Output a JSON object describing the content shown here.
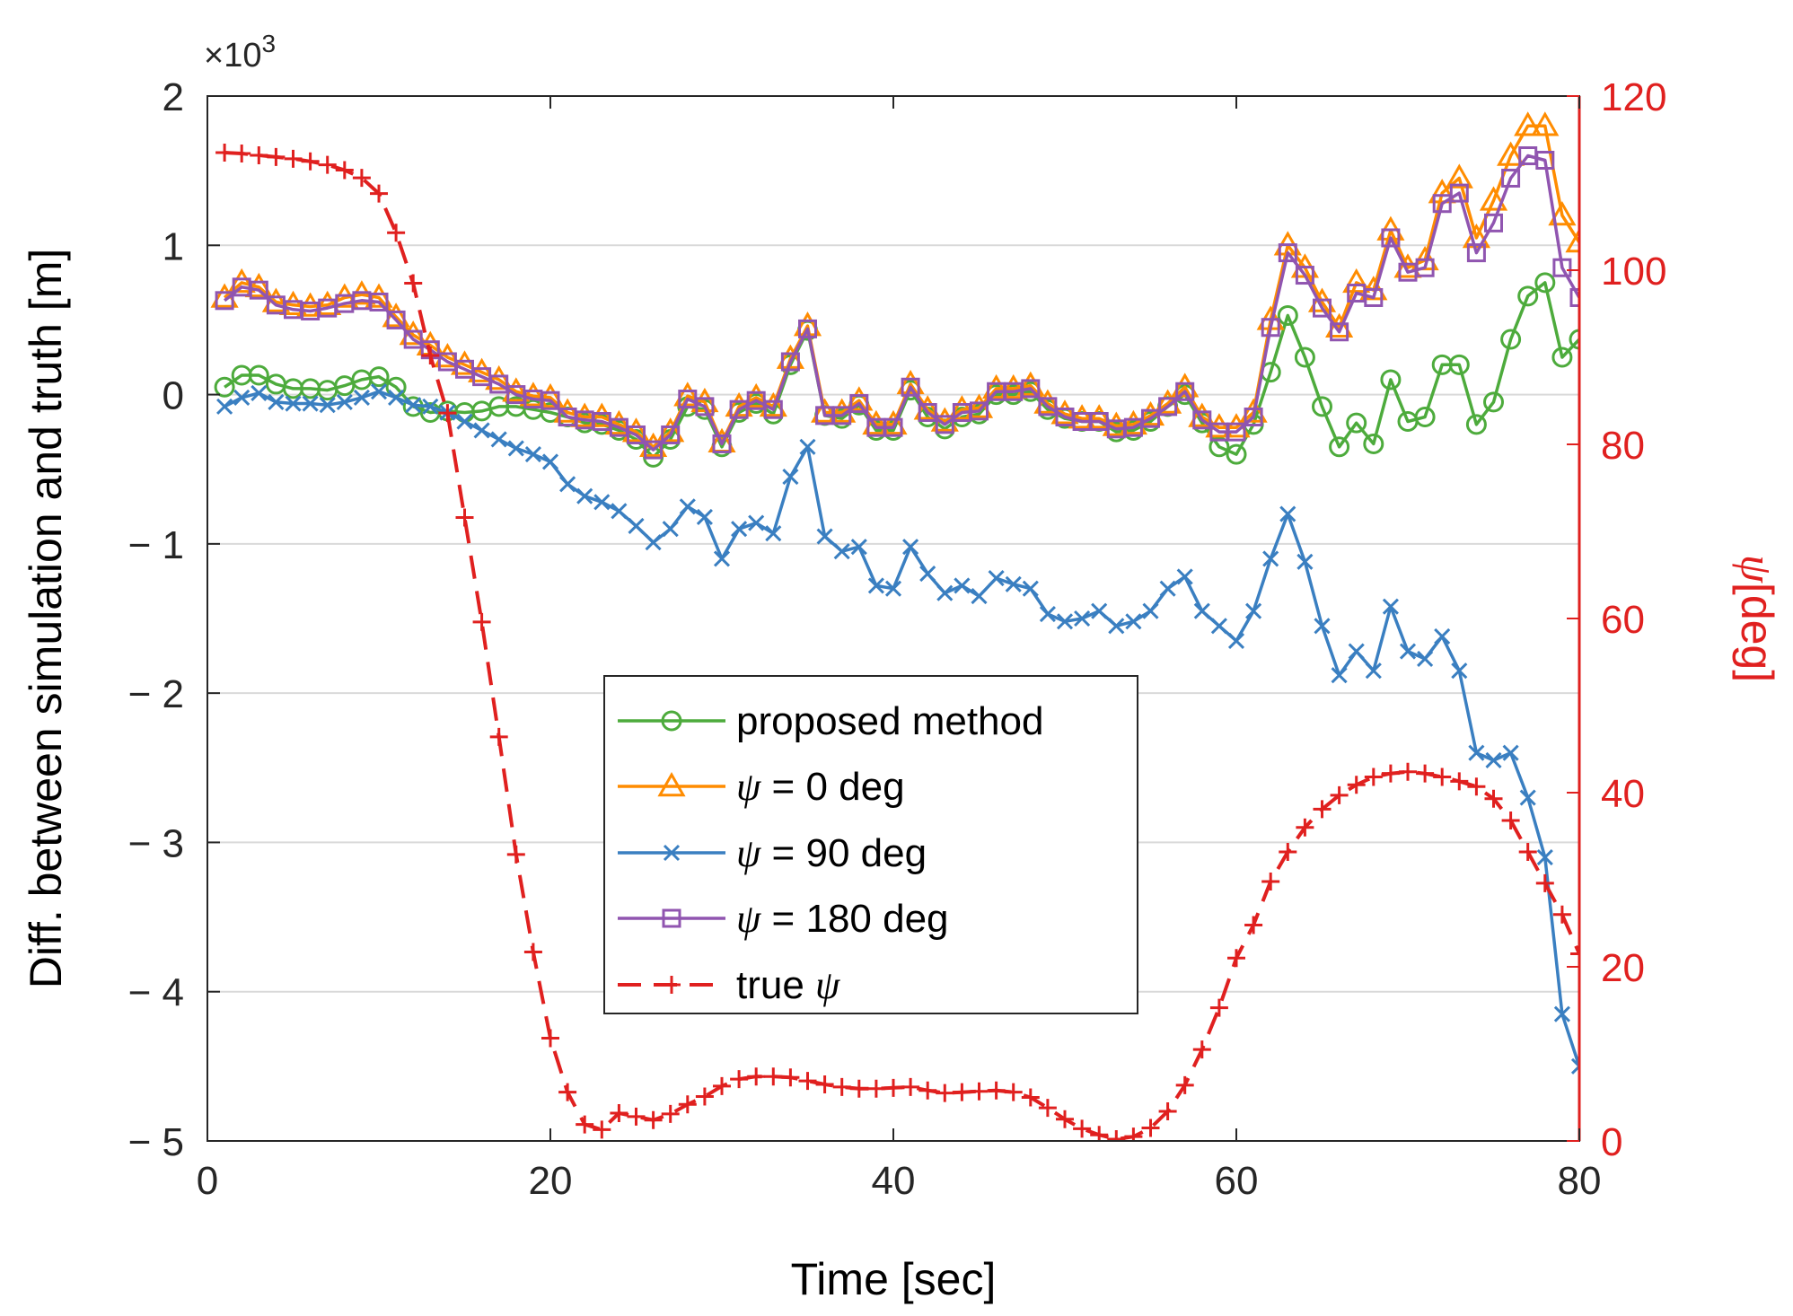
{
  "chart_data": {
    "type": "line",
    "title": "",
    "xlabel": "Time [sec]",
    "ylabel_left": "Diff. between simulation and truth [m]",
    "ylabel_right_symbol": "ψ",
    "ylabel_right_unit": "[deg]",
    "left_multiplier": "×10",
    "left_multiplier_exp": "3",
    "xlim": [
      0,
      80
    ],
    "ylim_left": [
      -5,
      2
    ],
    "ylim_right": [
      0,
      120
    ],
    "x_ticks": [
      "0",
      "20",
      "40",
      "60",
      "80"
    ],
    "y_ticks_left": [
      "2",
      "1",
      "0",
      "− 1",
      "− 2",
      "− 3",
      "− 4",
      "− 5"
    ],
    "y_ticks_right": [
      "120",
      "100",
      "80",
      "60",
      "40",
      "20",
      "0"
    ],
    "grid": "horizontal",
    "legend_position": "center",
    "colors": {
      "green": "#4dab3c",
      "orange": "#ff8c00",
      "blue": "#3a7fc1",
      "purple": "#9055b0",
      "red": "#e0201f",
      "axis": "#262626",
      "grid": "#d9d9d9"
    },
    "x": [
      1,
      2,
      3,
      4,
      5,
      6,
      7,
      8,
      9,
      10,
      11,
      12,
      13,
      14,
      15,
      16,
      17,
      18,
      19,
      20,
      21,
      22,
      23,
      24,
      25,
      26,
      27,
      28,
      29,
      30,
      31,
      32,
      33,
      34,
      35,
      36,
      37,
      38,
      39,
      40,
      41,
      42,
      43,
      44,
      45,
      46,
      47,
      48,
      49,
      50,
      51,
      52,
      53,
      54,
      55,
      56,
      57,
      58,
      59,
      60,
      61,
      62,
      63,
      64,
      65,
      66,
      67,
      68,
      69,
      70,
      71,
      72,
      73,
      74,
      75,
      76,
      77,
      78,
      79,
      80
    ],
    "series": [
      {
        "name": "proposed method",
        "axis": "left",
        "color": "#4dab3c",
        "marker": "circle",
        "dash": "solid",
        "values": [
          0.05,
          0.13,
          0.13,
          0.07,
          0.04,
          0.04,
          0.03,
          0.06,
          0.1,
          0.12,
          0.05,
          -0.08,
          -0.12,
          -0.11,
          -0.12,
          -0.11,
          -0.08,
          -0.08,
          -0.1,
          -0.12,
          -0.15,
          -0.19,
          -0.2,
          -0.24,
          -0.3,
          -0.42,
          -0.3,
          -0.08,
          -0.1,
          -0.35,
          -0.12,
          -0.06,
          -0.13,
          0.2,
          0.43,
          -0.14,
          -0.16,
          -0.07,
          -0.24,
          -0.24,
          0.03,
          -0.15,
          -0.23,
          -0.15,
          -0.13,
          0,
          0,
          0.02,
          -0.1,
          -0.16,
          -0.18,
          -0.18,
          -0.25,
          -0.24,
          -0.18,
          -0.08,
          0,
          -0.19,
          -0.35,
          -0.4,
          -0.2,
          0.15,
          0.53,
          0.25,
          -0.08,
          -0.35,
          -0.19,
          -0.33,
          0.1,
          -0.18,
          -0.15,
          0.2,
          0.2,
          -0.2,
          -0.05,
          0.37,
          0.66,
          0.75,
          0.25,
          0.37
        ]
      },
      {
        "name": "ψ = 0 deg",
        "axis": "left",
        "color": "#ff8c00",
        "marker": "triangle",
        "dash": "solid",
        "values": [
          0.65,
          0.75,
          0.72,
          0.62,
          0.6,
          0.59,
          0.6,
          0.65,
          0.67,
          0.65,
          0.52,
          0.4,
          0.33,
          0.25,
          0.2,
          0.15,
          0.1,
          0.02,
          -0.01,
          -0.02,
          -0.12,
          -0.15,
          -0.15,
          -0.2,
          -0.25,
          -0.35,
          -0.25,
          -0.01,
          -0.05,
          -0.32,
          -0.08,
          -0.02,
          -0.08,
          0.24,
          0.46,
          -0.12,
          -0.12,
          -0.04,
          -0.2,
          -0.2,
          0.07,
          -0.1,
          -0.18,
          -0.1,
          -0.09,
          0.04,
          0.04,
          0.06,
          -0.06,
          -0.13,
          -0.16,
          -0.16,
          -0.21,
          -0.2,
          -0.14,
          -0.06,
          0.05,
          -0.15,
          -0.22,
          -0.22,
          -0.12,
          0.5,
          1,
          0.85,
          0.62,
          0.45,
          0.75,
          0.7,
          1.1,
          0.85,
          0.9,
          1.35,
          1.45,
          1.05,
          1.3,
          1.6,
          1.8,
          1.8,
          1.2,
          1.02
        ]
      },
      {
        "name": "ψ = 90 deg",
        "axis": "left",
        "color": "#3a7fc1",
        "marker": "x",
        "dash": "solid",
        "values": [
          -0.08,
          -0.02,
          0.01,
          -0.05,
          -0.06,
          -0.06,
          -0.07,
          -0.05,
          -0.02,
          0.02,
          -0.02,
          -0.07,
          -0.08,
          -0.12,
          -0.18,
          -0.24,
          -0.3,
          -0.36,
          -0.4,
          -0.45,
          -0.6,
          -0.68,
          -0.72,
          -0.78,
          -0.88,
          -0.99,
          -0.9,
          -0.75,
          -0.82,
          -1.1,
          -0.9,
          -0.86,
          -0.93,
          -0.55,
          -0.35,
          -0.95,
          -1.05,
          -1.02,
          -1.28,
          -1.3,
          -1.02,
          -1.2,
          -1.33,
          -1.28,
          -1.35,
          -1.23,
          -1.27,
          -1.3,
          -1.47,
          -1.52,
          -1.5,
          -1.45,
          -1.55,
          -1.52,
          -1.45,
          -1.3,
          -1.22,
          -1.45,
          -1.55,
          -1.65,
          -1.45,
          -1.1,
          -0.8,
          -1.12,
          -1.55,
          -1.88,
          -1.72,
          -1.85,
          -1.42,
          -1.72,
          -1.77,
          -1.62,
          -1.85,
          -2.4,
          -2.45,
          -2.4,
          -2.7,
          -3.1,
          -4.15,
          -4.5
        ]
      },
      {
        "name": "ψ = 180 deg",
        "axis": "left",
        "color": "#9055b0",
        "marker": "square",
        "dash": "solid",
        "values": [
          0.63,
          0.72,
          0.7,
          0.6,
          0.57,
          0.56,
          0.58,
          0.61,
          0.63,
          0.62,
          0.5,
          0.37,
          0.3,
          0.22,
          0.17,
          0.12,
          0.07,
          0,
          -0.03,
          -0.04,
          -0.15,
          -0.17,
          -0.18,
          -0.22,
          -0.27,
          -0.37,
          -0.27,
          -0.03,
          -0.08,
          -0.33,
          -0.1,
          -0.04,
          -0.1,
          0.22,
          0.44,
          -0.14,
          -0.14,
          -0.06,
          -0.22,
          -0.22,
          0.05,
          -0.12,
          -0.2,
          -0.12,
          -0.11,
          0.02,
          0.02,
          0.04,
          -0.08,
          -0.15,
          -0.18,
          -0.18,
          -0.23,
          -0.22,
          -0.16,
          -0.08,
          0.02,
          -0.17,
          -0.25,
          -0.25,
          -0.15,
          0.45,
          0.95,
          0.8,
          0.58,
          0.42,
          0.68,
          0.65,
          1.05,
          0.82,
          0.85,
          1.28,
          1.35,
          0.95,
          1.15,
          1.45,
          1.6,
          1.57,
          0.85,
          0.65
        ]
      },
      {
        "name": "true ψ",
        "axis": "right",
        "color": "#e0201f",
        "marker": "plus",
        "dash": "dashed",
        "values": [
          113.5,
          113.4,
          113.2,
          113,
          112.8,
          112.5,
          112.1,
          111.5,
          110.6,
          108.8,
          104.3,
          98.5,
          90.2,
          83.6,
          71.6,
          59.6,
          46.4,
          32.9,
          21.7,
          11.8,
          5.6,
          1.9,
          1.3,
          3.2,
          2.8,
          2.4,
          3.1,
          4.2,
          5.1,
          6.3,
          7.1,
          7.4,
          7.4,
          7.3,
          6.9,
          6.5,
          6.2,
          6,
          6,
          6.1,
          6.2,
          5.8,
          5.5,
          5.6,
          5.7,
          5.8,
          5.6,
          5,
          3.8,
          2.5,
          1.4,
          0.7,
          0.2,
          0.5,
          1.5,
          3.4,
          6.4,
          10.5,
          15.3,
          21,
          24.8,
          29.8,
          33.2,
          36,
          38.1,
          39.7,
          40.9,
          41.8,
          42.2,
          42.4,
          42.2,
          41.8,
          41.3,
          40.7,
          39.3,
          36.8,
          33.2,
          29.6,
          26,
          21.5
        ]
      }
    ]
  }
}
